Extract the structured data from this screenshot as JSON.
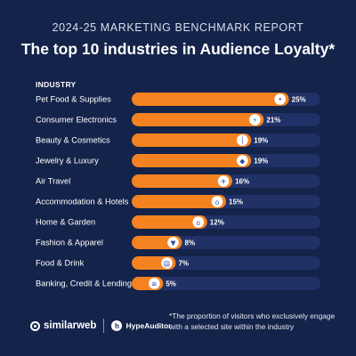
{
  "header": {
    "subtitle": "2024-25 MARKETING BENCHMARK REPORT",
    "title": "The top 10 industries in Audience Loyalty*"
  },
  "colors": {
    "background": "#14234a",
    "bar_fill": "#f58220",
    "bar_track": "#1f3166",
    "icon_circle": "#ffffff",
    "icon_glyph": "#2c4a9a"
  },
  "chart_data": {
    "type": "bar",
    "orientation": "horizontal",
    "category_header": "INDUSTRY",
    "categories": [
      "Pet Food & Supplies",
      "Consumer Electronics",
      "Beauty & Cosmetics",
      "Jewelry & Luxury",
      "Air Travel",
      "Accommodation & Hotels",
      "Home & Garden",
      "Fashion & Apparel",
      "Food & Drink",
      "Banking, Credit & Lending"
    ],
    "values": [
      25,
      21,
      19,
      19,
      16,
      15,
      12,
      8,
      7,
      5
    ],
    "value_labels": [
      "25%",
      "21%",
      "19%",
      "19%",
      "16%",
      "15%",
      "12%",
      "8%",
      "7%",
      "5%"
    ],
    "icons": [
      "paw-icon",
      "lightning-icon",
      "lipstick-icon",
      "gem-icon",
      "airplane-icon",
      "hotel-icon",
      "house-icon",
      "shirt-icon",
      "cart-icon",
      "bank-icon"
    ],
    "xlim": [
      0,
      30
    ],
    "grid": false,
    "legend": "none"
  },
  "footer": {
    "brand1": "similarweb",
    "brand2": "HypeAuditor",
    "footnote": "*The proportion of visitors who exclusively engage with a selected site within the industry"
  }
}
